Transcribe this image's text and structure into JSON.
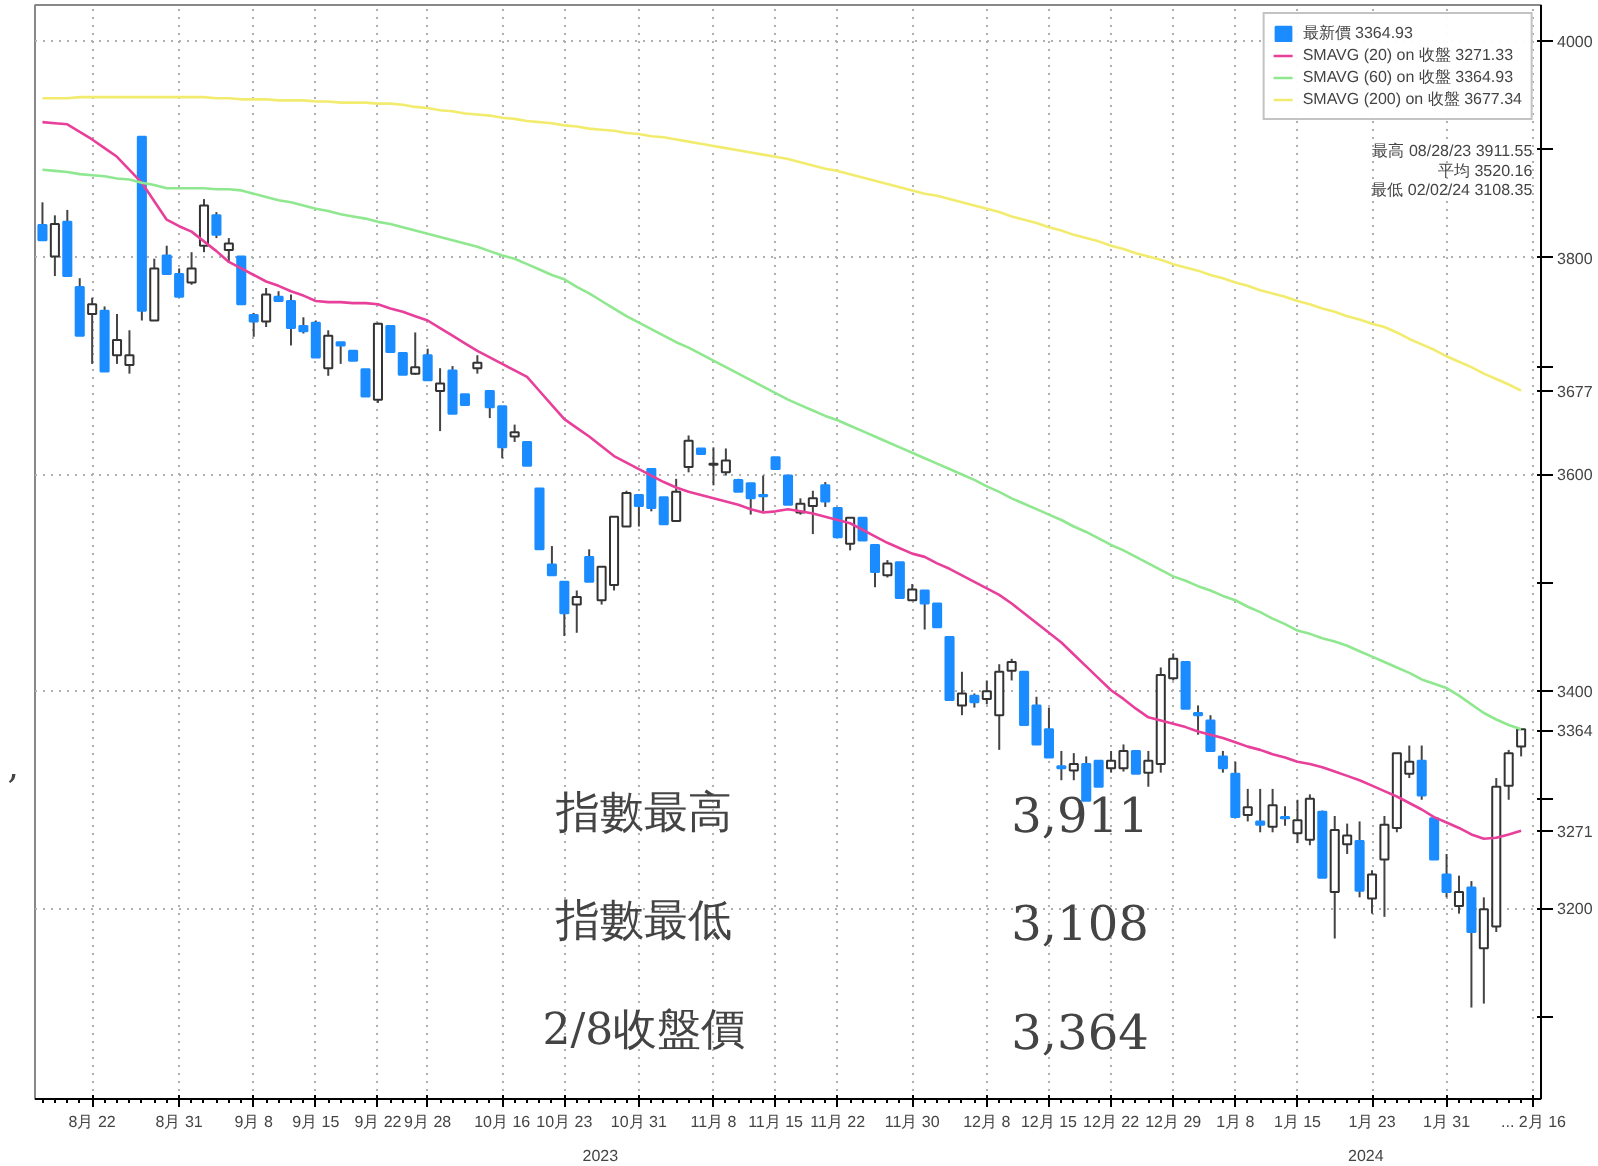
{
  "chart_data": {
    "type": "candlestick",
    "categories": [
      null,
      null,
      null,
      null,
      "8月 22",
      null,
      null,
      null,
      null,
      null,
      null,
      "8月 31",
      null,
      null,
      null,
      null,
      null,
      "9月 8",
      null,
      null,
      null,
      null,
      "9月 15",
      null,
      null,
      null,
      null,
      "9月 22",
      null,
      null,
      null,
      "9月 28",
      null,
      null,
      null,
      null,
      null,
      "10月 16",
      null,
      null,
      null,
      null,
      "10月 23",
      null,
      null,
      null,
      null,
      null,
      "10月 31",
      null,
      null,
      null,
      null,
      null,
      "11月 8",
      null,
      null,
      null,
      null,
      "11月 15",
      null,
      null,
      null,
      null,
      "11月 22",
      null,
      null,
      null,
      null,
      null,
      "11月 30",
      null,
      null,
      null,
      null,
      null,
      "12月 8",
      null,
      null,
      null,
      null,
      "12月 15",
      null,
      null,
      null,
      null,
      "12月 22",
      null,
      null,
      null,
      null,
      "12月 29",
      null,
      null,
      null,
      null,
      "1月 8",
      null,
      null,
      null,
      null,
      "1月 15",
      null,
      null,
      null,
      null,
      null,
      "1月 23",
      null,
      null,
      null,
      null,
      null,
      "1月 31",
      null,
      null,
      null,
      null,
      null,
      null,
      "... 2月 16"
    ],
    "series": [
      {
        "name": "最新價 3364.93",
        "colors": [
          "#1a8cff",
          "#ffffff",
          "#1a8cff",
          "#1a8cff",
          "#ffffff",
          "#1a8cff",
          "#ffffff",
          "#ffffff",
          "#1a8cff",
          "#ffffff",
          "#1a8cff",
          "#1a8cff",
          "#ffffff",
          "#ffffff",
          "#1a8cff",
          "#ffffff",
          "#1a8cff",
          "#1a8cff",
          "#ffffff",
          "#1a8cff",
          "#1a8cff",
          "#1a8cff",
          "#1a8cff",
          "#ffffff",
          "#1a8cff",
          "#1a8cff",
          "#1a8cff",
          "#ffffff",
          "#1a8cff",
          "#1a8cff",
          "#ffffff",
          "#1a8cff",
          "#ffffff",
          "#1a8cff",
          "#1a8cff",
          "#ffffff",
          "#1a8cff",
          "#1a8cff",
          "#ffffff",
          "#1a8cff",
          "#1a8cff",
          "#1a8cff",
          "#1a8cff",
          "#ffffff",
          "#1a8cff",
          "#ffffff",
          "#ffffff",
          "#ffffff",
          "#1a8cff",
          "#1a8cff",
          "#1a8cff",
          "#ffffff",
          "#ffffff",
          "#1a8cff",
          "#ffffff",
          "#ffffff",
          "#1a8cff",
          "#1a8cff",
          "#1a8cff",
          "#1a8cff",
          "#1a8cff",
          "#ffffff",
          "#ffffff",
          "#1a8cff",
          "#1a8cff",
          "#ffffff",
          "#1a8cff",
          "#1a8cff",
          "#ffffff",
          "#1a8cff",
          "#ffffff",
          "#1a8cff",
          "#1a8cff",
          "#1a8cff",
          "#ffffff",
          "#1a8cff",
          "#ffffff",
          "#ffffff",
          "#ffffff",
          "#1a8cff",
          "#1a8cff",
          "#1a8cff",
          "#1a8cff",
          "#ffffff",
          "#1a8cff",
          "#1a8cff",
          "#ffffff",
          "#ffffff",
          "#1a8cff",
          "#ffffff",
          "#ffffff",
          "#ffffff",
          "#1a8cff",
          "#1a8cff",
          "#1a8cff",
          "#1a8cff",
          "#1a8cff",
          "#ffffff",
          "#1a8cff",
          "#ffffff",
          "#1a8cff",
          "#ffffff",
          "#ffffff",
          "#1a8cff",
          "#ffffff",
          "#ffffff",
          "#1a8cff",
          "#ffffff",
          "#ffffff",
          "#ffffff",
          "#ffffff",
          "#1a8cff",
          "#1a8cff",
          "#1a8cff",
          "#ffffff",
          "#1a8cff",
          "#ffffff",
          "#ffffff",
          "#ffffff",
          "#ffffff",
          null
        ],
        "ohlc": [
          [
            3830,
            3851,
            3816,
            3816
          ],
          [
            3801,
            3839,
            3783,
            3831
          ],
          [
            3833,
            3844,
            3783,
            3783
          ],
          [
            3773,
            3781,
            3728,
            3728
          ],
          [
            3748,
            3763,
            3702,
            3757
          ],
          [
            3751,
            3755,
            3695,
            3695
          ],
          [
            3710,
            3748,
            3702,
            3724
          ],
          [
            3701,
            3733,
            3693,
            3710
          ],
          [
            3911.55,
            3911.55,
            3742,
            3751
          ],
          [
            3742,
            3799,
            3742,
            3790
          ],
          [
            3802,
            3811,
            3784,
            3785
          ],
          [
            3785,
            3790,
            3764,
            3764
          ],
          [
            3777,
            3805,
            3775,
            3790
          ],
          [
            3811,
            3854,
            3805,
            3848
          ],
          [
            3839,
            3842,
            3818,
            3821
          ],
          [
            3807,
            3818,
            3796,
            3813
          ],
          [
            3801,
            3801,
            3757,
            3757
          ],
          [
            3747,
            3749,
            3727,
            3741
          ],
          [
            3741,
            3772,
            3736,
            3766
          ],
          [
            3764,
            3769,
            3759,
            3760
          ],
          [
            3760,
            3766,
            3719,
            3735
          ],
          [
            3737,
            3745,
            3730,
            3732
          ],
          [
            3740,
            3742,
            3708,
            3708
          ],
          [
            3698,
            3733,
            3691,
            3728
          ],
          [
            3722,
            3722,
            3702,
            3719
          ],
          [
            3714,
            3714,
            3705,
            3705
          ],
          [
            3697,
            3697,
            3672,
            3672
          ],
          [
            3669,
            3740,
            3666,
            3739
          ],
          [
            3737,
            3737,
            3712,
            3713
          ],
          [
            3712,
            3712,
            3692,
            3692
          ],
          [
            3693,
            3731,
            3692,
            3699
          ],
          [
            3710,
            3716,
            3687,
            3687
          ],
          [
            3677,
            3698,
            3640,
            3684
          ],
          [
            3696,
            3700,
            3656,
            3656
          ],
          [
            3674,
            3674,
            3664,
            3664
          ],
          [
            3698,
            3710,
            3693,
            3703
          ],
          [
            3677,
            3677,
            3652,
            3662
          ],
          [
            3663,
            3663,
            3615,
            3625
          ],
          [
            3635,
            3646,
            3630,
            3639
          ],
          [
            3630,
            3630,
            3608,
            3608
          ],
          [
            3587,
            3587,
            3531,
            3531
          ],
          [
            3517,
            3534,
            3507,
            3507
          ],
          [
            3501,
            3501,
            3451,
            3472
          ],
          [
            3480,
            3493,
            3454,
            3487
          ],
          [
            3524,
            3531,
            3501,
            3501
          ],
          [
            3484,
            3515,
            3480,
            3515
          ],
          [
            3498,
            3561,
            3493,
            3561
          ],
          [
            3552,
            3585,
            3552,
            3583
          ],
          [
            3581,
            3581,
            3552,
            3571
          ],
          [
            3605,
            3605,
            3566,
            3569
          ],
          [
            3579,
            3579,
            3554,
            3554
          ],
          [
            3557,
            3596,
            3557,
            3584
          ],
          [
            3607,
            3636,
            3602,
            3631
          ],
          [
            3624,
            3624,
            3619,
            3619
          ],
          [
            3609,
            3625,
            3590,
            3610
          ],
          [
            3602,
            3624,
            3599,
            3613
          ],
          [
            3595,
            3596,
            3584,
            3584
          ],
          [
            3592,
            3592,
            3563,
            3578
          ],
          [
            3581,
            3599,
            3566,
            3580
          ],
          [
            3616,
            3616,
            3605,
            3605
          ],
          [
            3599,
            3599,
            3572,
            3572
          ],
          [
            3565,
            3578,
            3563,
            3573
          ],
          [
            3571,
            3585,
            3545,
            3578
          ],
          [
            3590,
            3593,
            3570,
            3575
          ],
          [
            3569,
            3569,
            3542,
            3542
          ],
          [
            3536,
            3560,
            3530,
            3560
          ],
          [
            3560,
            3560,
            3539,
            3539
          ],
          [
            3535,
            3535,
            3496,
            3510
          ],
          [
            3507,
            3521,
            3505,
            3518
          ],
          [
            3519,
            3519,
            3486,
            3486
          ],
          [
            3484,
            3499,
            3484,
            3494
          ],
          [
            3493,
            3493,
            3457,
            3481
          ],
          [
            3481,
            3481,
            3459,
            3459
          ],
          [
            3450,
            3450,
            3392,
            3392
          ],
          [
            3387,
            3418,
            3378,
            3398
          ],
          [
            3396,
            3398,
            3385,
            3390
          ],
          [
            3393,
            3410,
            3388,
            3400
          ],
          [
            3378,
            3425,
            3346,
            3418
          ],
          [
            3419,
            3430,
            3410,
            3427
          ],
          [
            3418,
            3418,
            3369,
            3369
          ],
          [
            3387,
            3395,
            3351,
            3351
          ],
          [
            3365,
            3385,
            3339,
            3339
          ],
          [
            3331,
            3345,
            3318,
            3329
          ],
          [
            3327,
            3343,
            3318,
            3333
          ],
          [
            3333,
            3340,
            3299,
            3299
          ],
          [
            3336,
            3336,
            3312,
            3312
          ],
          [
            3329,
            3345,
            3325,
            3336
          ],
          [
            3329,
            3351,
            3326,
            3345
          ],
          [
            3345,
            3345,
            3324,
            3324
          ],
          [
            3325,
            3345,
            3312,
            3336
          ],
          [
            3333,
            3422,
            3325,
            3415
          ],
          [
            3412,
            3435,
            3410,
            3430
          ],
          [
            3427,
            3427,
            3384,
            3384
          ],
          [
            3380,
            3387,
            3360,
            3378
          ],
          [
            3373,
            3378,
            3345,
            3345
          ],
          [
            3340,
            3345,
            3325,
            3329
          ],
          [
            3324,
            3335,
            3284,
            3284
          ],
          [
            3286,
            3310,
            3280,
            3293
          ],
          [
            3280,
            3310,
            3270,
            3277
          ],
          [
            3275,
            3310,
            3270,
            3295
          ],
          [
            3284,
            3294,
            3276,
            3283
          ],
          [
            3269,
            3300,
            3260,
            3281
          ],
          [
            3263,
            3305,
            3258,
            3301
          ],
          [
            3289,
            3290,
            3228,
            3228
          ],
          [
            3215,
            3285,
            3172,
            3272
          ],
          [
            3259,
            3278,
            3250,
            3267
          ],
          [
            3262,
            3280,
            3210,
            3216
          ],
          [
            3209,
            3235,
            3195,
            3231
          ],
          [
            3245,
            3285,
            3192,
            3277
          ],
          [
            3274,
            3343,
            3270,
            3343
          ],
          [
            3324,
            3350,
            3320,
            3335
          ],
          [
            3336,
            3350,
            3300,
            3304
          ],
          [
            3283,
            3283,
            3245,
            3245
          ],
          [
            3231,
            3250,
            3210,
            3215
          ],
          [
            3202,
            3230,
            3195,
            3215
          ],
          [
            3219,
            3225,
            3108.35,
            3178
          ],
          [
            3163,
            3210,
            3112,
            3199
          ],
          [
            3183,
            3320,
            3178,
            3312
          ],
          [
            3313,
            3346,
            3300,
            3343
          ],
          [
            3349,
            3366,
            3340,
            3364.93
          ],
          null
        ]
      },
      {
        "name": "SMAVG (20) on 收盤 3271.33",
        "type": "line",
        "color": "#e8409a",
        "values": [
          3925,
          3924,
          3923,
          3916,
          3909,
          3901,
          3893,
          3881,
          3869,
          3852,
          3835,
          3829,
          3824,
          3815,
          3806,
          3796,
          3790,
          3784,
          3778,
          3774,
          3769,
          3765,
          3760,
          3759,
          3759,
          3758,
          3758,
          3757,
          3753,
          3750,
          3746,
          3742,
          3735,
          3728,
          3721,
          3714,
          3708,
          3702,
          3696,
          3690,
          3677,
          3664,
          3651,
          3643,
          3635,
          3626,
          3617,
          3611,
          3605,
          3599,
          3593,
          3588,
          3584,
          3581,
          3578,
          3575,
          3572,
          3568,
          3565,
          3566,
          3568,
          3566,
          3564,
          3561,
          3558,
          3555,
          3549,
          3543,
          3537,
          3532,
          3527,
          3524,
          3518,
          3513,
          3507,
          3501,
          3495,
          3489,
          3481,
          3472,
          3463,
          3454,
          3445,
          3434,
          3423,
          3412,
          3401,
          3393,
          3384,
          3376,
          3373,
          3370,
          3367,
          3363,
          3360,
          3357,
          3353,
          3349,
          3346,
          3342,
          3339,
          3335,
          3333,
          3330,
          3326,
          3322,
          3318,
          3313,
          3308,
          3303,
          3297,
          3291,
          3284,
          3279,
          3274,
          3268,
          3264,
          3265,
          3268,
          3271.33,
          null
        ]
      },
      {
        "name": "SMAVG (60) on 收盤 3364.93",
        "type": "line",
        "color": "#8fe88f",
        "values": [
          3881,
          3880,
          3879,
          3877,
          3876,
          3875,
          3873,
          3872,
          3869,
          3867,
          3864,
          3864,
          3864,
          3864,
          3863,
          3863,
          3862,
          3859,
          3856,
          3853,
          3851,
          3848,
          3845,
          3843,
          3840,
          3838,
          3836,
          3833,
          3831,
          3828,
          3825,
          3822,
          3819,
          3816,
          3813,
          3810,
          3806,
          3802,
          3799,
          3794,
          3789,
          3784,
          3780,
          3773,
          3767,
          3760,
          3753,
          3746,
          3740,
          3734,
          3728,
          3722,
          3717,
          3711,
          3705,
          3699,
          3693,
          3687,
          3681,
          3675,
          3669,
          3664,
          3659,
          3654,
          3650,
          3645,
          3640,
          3635,
          3630,
          3625,
          3620,
          3615,
          3610,
          3605,
          3600,
          3595,
          3589,
          3584,
          3578,
          3573,
          3568,
          3563,
          3558,
          3552,
          3547,
          3541,
          3535,
          3530,
          3524,
          3518,
          3512,
          3506,
          3502,
          3497,
          3493,
          3488,
          3484,
          3478,
          3473,
          3467,
          3462,
          3456,
          3453,
          3449,
          3446,
          3442,
          3437,
          3432,
          3427,
          3422,
          3417,
          3411,
          3407,
          3403,
          3396,
          3388,
          3380,
          3374,
          3369,
          3364.93,
          null
        ]
      },
      {
        "name": "SMAVG (200) on 收盤 3677.34",
        "type": "line",
        "color": "#f2ec6e",
        "values": [
          3947,
          3947,
          3947,
          3948,
          3948,
          3948,
          3948,
          3948,
          3948,
          3948,
          3948,
          3948,
          3948,
          3948,
          3947,
          3947,
          3946,
          3946,
          3946,
          3945,
          3945,
          3945,
          3944,
          3944,
          3943,
          3943,
          3943,
          3942,
          3942,
          3941,
          3939,
          3938,
          3936,
          3935,
          3933,
          3932,
          3931,
          3929,
          3928,
          3926,
          3925,
          3924,
          3922,
          3921,
          3919,
          3918,
          3917,
          3915,
          3914,
          3912,
          3911,
          3909,
          3907,
          3905,
          3903,
          3901,
          3899,
          3897,
          3895,
          3893,
          3891,
          3888,
          3885,
          3882,
          3880,
          3877,
          3874,
          3871,
          3868,
          3865,
          3862,
          3859,
          3857,
          3854,
          3851,
          3848,
          3845,
          3842,
          3838,
          3835,
          3832,
          3828,
          3825,
          3821,
          3818,
          3815,
          3811,
          3808,
          3804,
          3801,
          3798,
          3794,
          3791,
          3788,
          3784,
          3781,
          3777,
          3774,
          3770,
          3767,
          3764,
          3760,
          3757,
          3753,
          3750,
          3746,
          3743,
          3739,
          3736,
          3731,
          3725,
          3720,
          3715,
          3709,
          3704,
          3699,
          3693,
          3688,
          3683,
          3677.34,
          null
        ]
      }
    ],
    "ylim": [
      3024,
      4033
    ],
    "yticks": [
      {
        "value": 3100,
        "label": null
      },
      3200,
      {
        "value": 3300,
        "label": null
      },
      3400,
      {
        "value": 3500,
        "label": null
      },
      3600,
      {
        "value": 3700,
        "label": null
      },
      3800,
      {
        "value": 3900,
        "label": null
      },
      4000,
      {
        "value": 3677,
        "label": "3677"
      },
      {
        "value": 3364,
        "label": "3364"
      },
      {
        "value": 3271,
        "label": "3271"
      }
    ],
    "grid": true,
    "legend": "top right",
    "annotations": [
      "最高 08/28/23 3911.55",
      "平均 3520.16",
      "最低 02/02/24 3108.35",
      "指數最高",
      "3,911",
      "指數最低",
      "3,108",
      "2/8收盤價",
      "3,364",
      ",",
      "2023",
      "2024"
    ]
  }
}
